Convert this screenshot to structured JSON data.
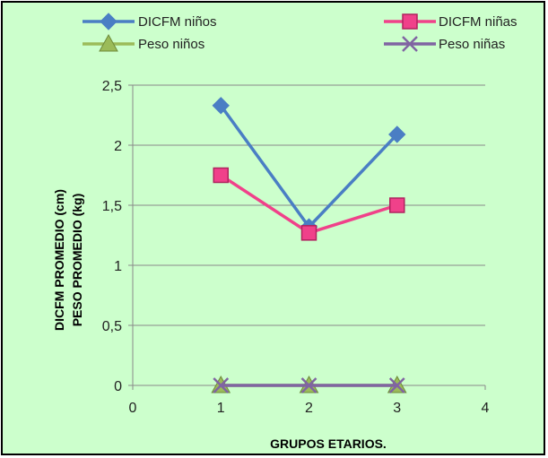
{
  "chart_data": {
    "type": "line",
    "title": "",
    "xlabel": "GRUPOS ETARIOS.",
    "ylabel_lines": [
      "DICFM  PROMEDIO (cm)",
      "PESO  PROMEDIO (kg)"
    ],
    "xlim": [
      0,
      4
    ],
    "ylim": [
      0,
      2.5
    ],
    "x_ticks": [
      "0",
      "1",
      "2",
      "3",
      "4"
    ],
    "y_ticks": [
      "0",
      "0,5",
      "1",
      "1,5",
      "2",
      "2,5"
    ],
    "grid": "horizontal",
    "legend_position": "top",
    "x": [
      1,
      2,
      3
    ],
    "series": [
      {
        "name": "DICFM niños",
        "values": [
          2.33,
          1.32,
          2.09
        ],
        "color": "#4a7ec4",
        "marker": "diamond"
      },
      {
        "name": "DICFM niñas",
        "values": [
          1.75,
          1.27,
          1.5
        ],
        "color": "#f0418a",
        "marker": "square"
      },
      {
        "name": "Peso niños",
        "values": [
          0,
          0,
          0
        ],
        "color": "#9bbb59",
        "marker": "triangle"
      },
      {
        "name": "Peso niñas",
        "values": [
          0,
          0,
          0
        ],
        "color": "#8064a2",
        "marker": "x"
      }
    ],
    "background_color": "#ccffcc"
  }
}
